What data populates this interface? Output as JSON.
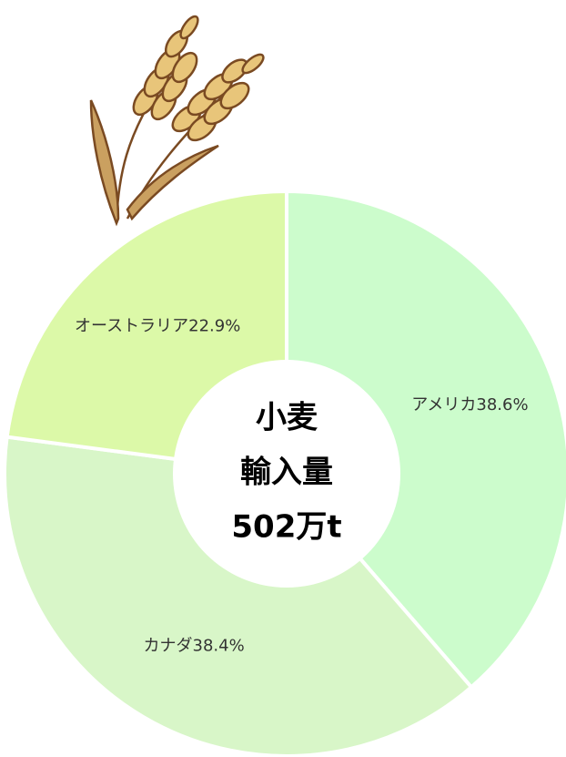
{
  "chart_data": {
    "type": "donut",
    "annotations": [
      "小麦",
      "輸入量",
      "502万t"
    ],
    "categories": [
      "アメリカ",
      "カナダ",
      "オーストラリア"
    ],
    "values": [
      38.6,
      38.4,
      22.9
    ],
    "value_labels": [
      "38.6%",
      "38.4%",
      "22.9%"
    ],
    "colors": [
      "#ccfccc",
      "#d8f6c8",
      "#dcf9a8"
    ]
  }
}
